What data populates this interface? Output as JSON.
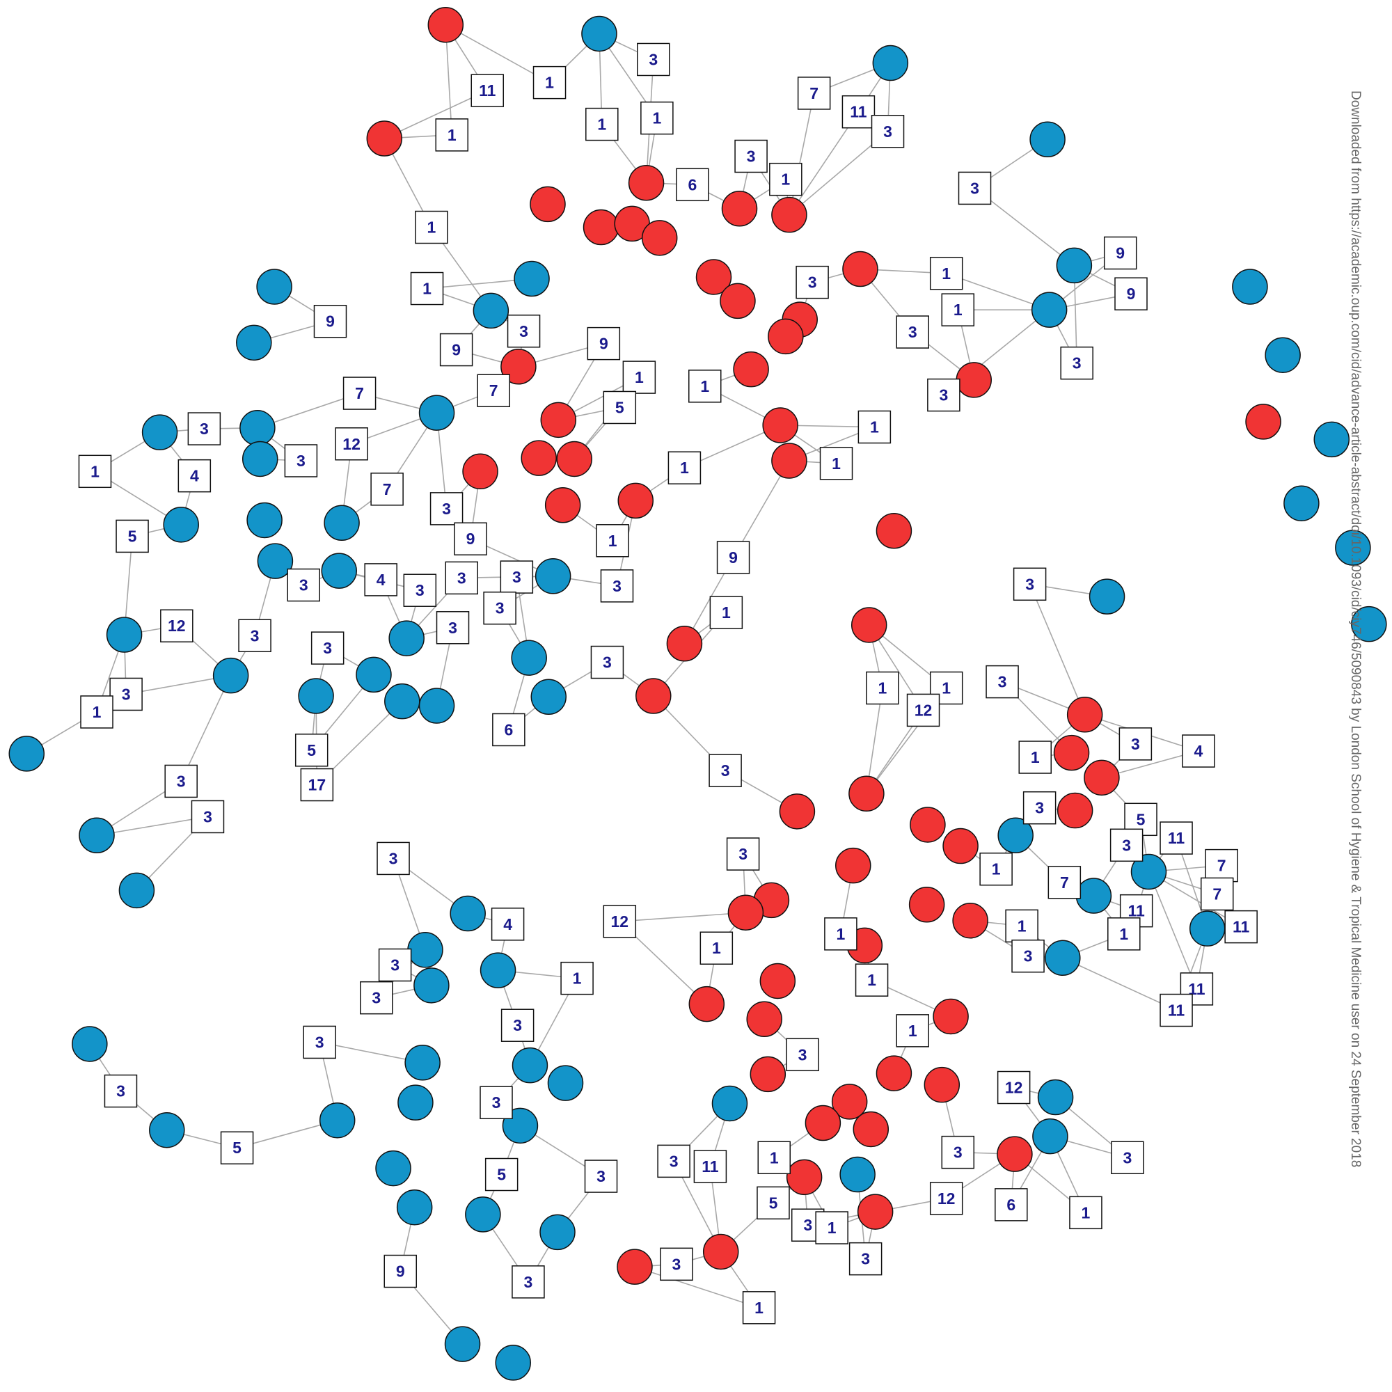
{
  "labels": [
    "11",
    "1",
    "3",
    "1",
    "1",
    "1",
    "7",
    "11",
    "3",
    "3",
    "1",
    "6",
    "3",
    "1",
    "1",
    "9",
    "3",
    "9",
    "9",
    "3",
    "1",
    "9",
    "9",
    "1",
    "3",
    "3",
    "3",
    "7",
    "7",
    "1",
    "5",
    "1",
    "3",
    "12",
    "3",
    "4",
    "1",
    "1",
    "1",
    "1",
    "7",
    "3",
    "9",
    "5",
    "1",
    "9",
    "3",
    "4",
    "3",
    "3",
    "3",
    "3",
    "3",
    "3",
    "12",
    "3",
    "3",
    "3",
    "1",
    "3",
    "3",
    "1",
    "1",
    "12",
    "3",
    "1",
    "6",
    "5",
    "17",
    "3",
    "3",
    "3",
    "1",
    "3",
    "4",
    "3",
    "5",
    "3",
    "11",
    "3",
    "3",
    "1",
    "7",
    "7",
    "7",
    "11",
    "1",
    "11",
    "4",
    "12",
    "1",
    "1",
    "1",
    "3",
    "3",
    "3",
    "1",
    "1",
    "11",
    "11",
    "1",
    "3",
    "3",
    "3",
    "12",
    "3",
    "3",
    "5",
    "3",
    "3",
    "3",
    "11",
    "1",
    "5",
    "3",
    "12",
    "6",
    "5",
    "1",
    "3",
    "1",
    "3",
    "3",
    "9",
    "3",
    "1"
  ],
  "watermark": "Downloaded from https://academic.oup.com/cid/advance-article-abstract/doi/10.1093/cid/ciy746/5090843 by London School of Hygiene & Tropical Medicine user on 24 September 2018"
}
